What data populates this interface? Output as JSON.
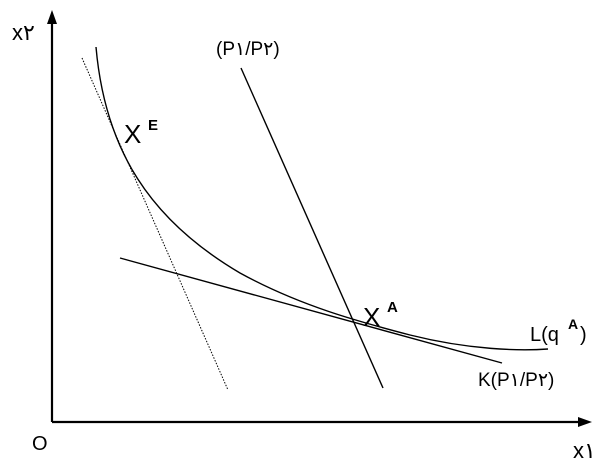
{
  "axes": {
    "y_label": "x۲",
    "x_label": "x۱",
    "origin_label": "O"
  },
  "points": {
    "equilibrium": {
      "label": "X",
      "superscript": "E"
    },
    "autarky": {
      "label": "X",
      "superscript": "A"
    }
  },
  "lines": {
    "steep_price_line_label": "(P۱/P۲)",
    "indifference_curve_label": "L(q",
    "indifference_curve_superscript": "A",
    "indifference_curve_close": ")",
    "budget_line_label": "K(P۱/P۲)"
  }
}
